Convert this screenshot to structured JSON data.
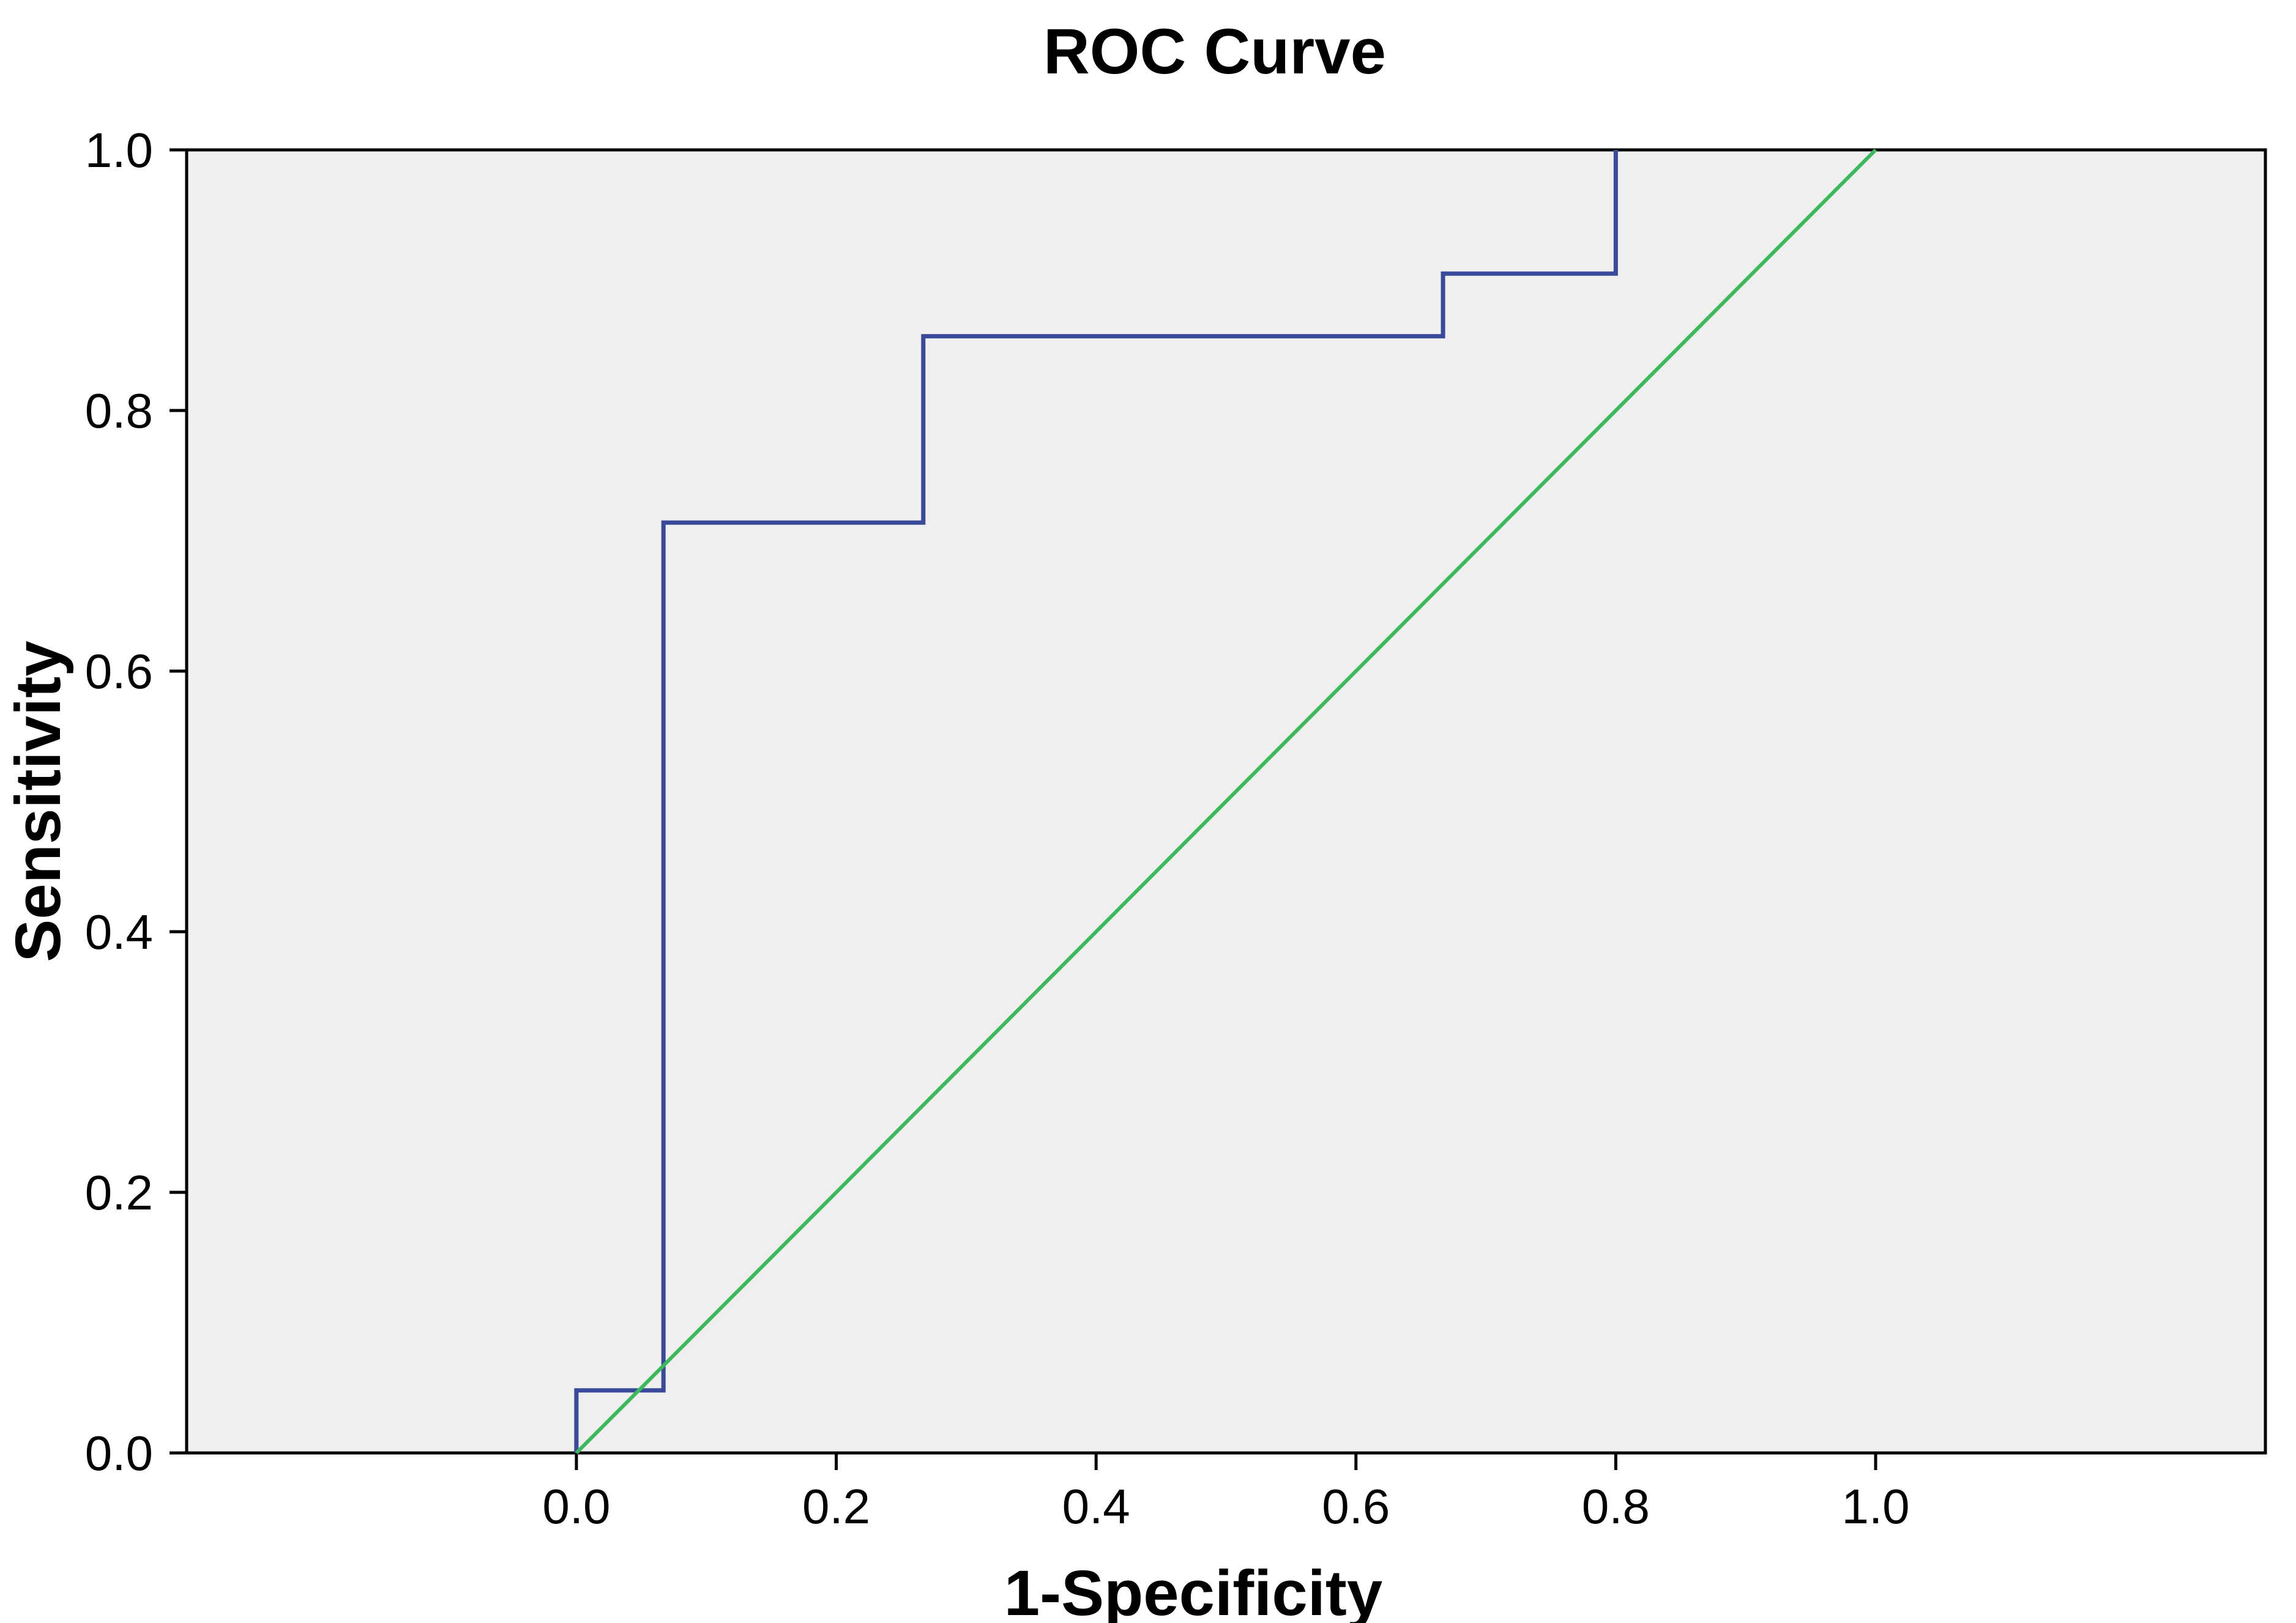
{
  "chart_data": {
    "type": "line",
    "title": "ROC Curve",
    "xlabel": "1-Specificity",
    "ylabel": "Sensitivity",
    "xlim": [
      -0.3,
      1.3
    ],
    "ylim": [
      0,
      1
    ],
    "x_ticks": [
      "0.0",
      "0.2",
      "0.4",
      "0.6",
      "0.8",
      "1.0"
    ],
    "x_tick_values": [
      0,
      0.2,
      0.4,
      0.6,
      0.8,
      1.0
    ],
    "y_ticks": [
      "0.0",
      "0.2",
      "0.4",
      "0.6",
      "0.8",
      "1.0"
    ],
    "y_tick_values": [
      0,
      0.2,
      0.4,
      0.6,
      0.8,
      1.0
    ],
    "grid": false,
    "plot_background": "#efefef",
    "series": [
      {
        "color": "#3a4a9a",
        "style": "step",
        "points": [
          [
            0,
            0
          ],
          [
            0,
            0.048
          ],
          [
            0.067,
            0.048
          ],
          [
            0.067,
            0.714
          ],
          [
            0.267,
            0.714
          ],
          [
            0.267,
            0.857
          ],
          [
            0.667,
            0.857
          ],
          [
            0.667,
            0.905
          ],
          [
            0.8,
            0.905
          ],
          [
            0.8,
            1.0
          ]
        ]
      },
      {
        "color": "#3cb95a",
        "style": "line",
        "points": [
          [
            0,
            0
          ],
          [
            1,
            1
          ]
        ]
      }
    ]
  }
}
